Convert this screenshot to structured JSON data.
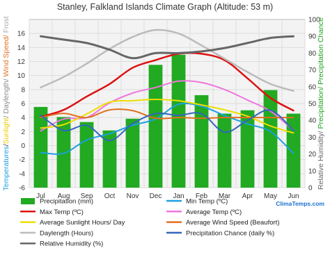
{
  "chart_data": {
    "type": "bar",
    "title": "Stanley, Falkland Islands Climate Graph (Altitude: 53 m)",
    "watermark": "ClimaTemps.com",
    "categories": [
      "Jul",
      "Aug",
      "Sep",
      "Oct",
      "Nov",
      "Dec",
      "Jan",
      "Feb",
      "Mar",
      "Apr",
      "May",
      "Jun"
    ],
    "left_axis": {
      "ylim": [
        -6,
        18
      ],
      "ticks": [
        -6,
        -4,
        -2,
        0,
        2,
        4,
        6,
        8,
        10,
        12,
        14,
        16
      ],
      "label_parts": [
        {
          "text": "Temperatures",
          "color": "#1ba0e0"
        },
        {
          "text": "/",
          "color": "#444444"
        },
        {
          "text": "Sunlight",
          "color": "#e8cd00"
        },
        {
          "text": "/ Daylength/ ",
          "color": "#888888"
        },
        {
          "text": "Wind Speed/",
          "color": "#e07020"
        },
        {
          "text": " Frost",
          "color": "#aaaaaa"
        }
      ]
    },
    "right_axis": {
      "ylim": [
        0,
        100
      ],
      "ticks": [
        0,
        10,
        20,
        30,
        40,
        50,
        60,
        70,
        80,
        90,
        100
      ],
      "label_parts": [
        {
          "text": "Relative Humidity/",
          "color": "#666666"
        },
        {
          "text": " Precipitation/ Precipitation Chance",
          "color": "#1ea01e"
        }
      ]
    },
    "bars": {
      "name": "Precipitation (mm)",
      "color": "#22aa22",
      "axis": "right",
      "values": [
        48,
        42,
        39,
        34,
        41,
        73,
        79,
        55,
        44,
        46,
        58,
        44
      ]
    },
    "series": [
      {
        "name": "Max Temp (ºC)",
        "color": "#dd1111",
        "width": 2.5,
        "axis": "left",
        "values": [
          4.1,
          5.1,
          7.0,
          8.8,
          11.1,
          12.2,
          13.1,
          13.1,
          12.2,
          9.6,
          6.8,
          5.0
        ]
      },
      {
        "name": "Average Temp (ºC)",
        "color": "#ee77dd",
        "width": 2,
        "axis": "left",
        "values": [
          2.1,
          3.8,
          4.0,
          6.1,
          7.5,
          8.3,
          9.2,
          9.0,
          8.0,
          6.5,
          4.9,
          2.2
        ]
      },
      {
        "name": "Min Temp (ºC)",
        "color": "#1ba0e0",
        "width": 2,
        "axis": "left",
        "values": [
          -1.0,
          -1.1,
          0.8,
          1.7,
          2.9,
          3.8,
          5.9,
          5.6,
          4.3,
          3.1,
          2.0,
          -1.1
        ]
      },
      {
        "name": "Average Sunlight Hours/ Day",
        "color": "#eedd00",
        "width": 2,
        "axis": "left",
        "values": [
          2.5,
          3.0,
          4.5,
          6.2,
          6.4,
          6.6,
          6.4,
          5.8,
          5.1,
          4.2,
          2.8,
          1.8
        ]
      },
      {
        "name": "Average Wind Speed (Beaufort)",
        "color": "#e07020",
        "width": 2,
        "axis": "left",
        "values": [
          4.0,
          4.6,
          4.0,
          5.1,
          5.0,
          3.9,
          4.0,
          3.9,
          4.0,
          4.0,
          4.0,
          4.0
        ]
      },
      {
        "name": "Daylength (Hours)",
        "color": "#bbbbbb",
        "width": 2.5,
        "axis": "left",
        "values": [
          8.3,
          9.8,
          11.7,
          13.8,
          15.5,
          16.5,
          16.0,
          14.3,
          12.4,
          10.5,
          8.8,
          7.8
        ]
      },
      {
        "name": "Precipitation Chance (daily %)",
        "color": "#3366bb",
        "width": 2,
        "axis": "right",
        "values": [
          43,
          34,
          37,
          28,
          38,
          44,
          43,
          44,
          33,
          40,
          46,
          34
        ]
      },
      {
        "name": "Relative Humidity (%)",
        "color": "#666666",
        "width": 3,
        "axis": "right",
        "values": [
          90,
          88,
          86,
          82,
          77,
          80,
          80,
          81,
          83,
          86,
          89,
          90
        ]
      }
    ],
    "legend": {
      "placement": "bottom",
      "items": [
        {
          "label": "Precipitation (mm)",
          "color": "#22aa22",
          "kind": "bar"
        },
        {
          "label": "Min Temp (ºC)",
          "color": "#1ba0e0",
          "kind": "line"
        },
        {
          "label": "Max Temp (ºC)",
          "color": "#dd1111",
          "kind": "line"
        },
        {
          "label": "Average Temp (ºC)",
          "color": "#ee77dd",
          "kind": "line"
        },
        {
          "label": "Average Sunlight Hours/ Day",
          "color": "#eedd00",
          "kind": "line"
        },
        {
          "label": "Average Wind Speed (Beaufort)",
          "color": "#e07020",
          "kind": "line"
        },
        {
          "label": "Daylength (Hours)",
          "color": "#bbbbbb",
          "kind": "line"
        },
        {
          "label": "Precipitation Chance (daily %)",
          "color": "#3366bb",
          "kind": "line"
        },
        {
          "label": "Relative Humidity (%)",
          "color": "#666666",
          "kind": "line"
        }
      ]
    },
    "grid": true
  }
}
